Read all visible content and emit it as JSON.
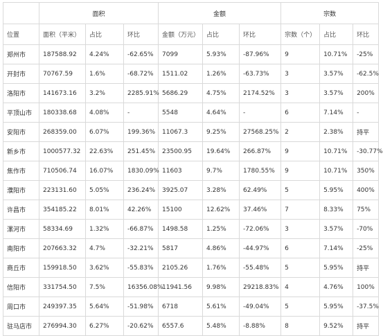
{
  "header": {
    "groups": [
      "面积",
      "金额",
      "宗数"
    ],
    "columns": [
      "位置",
      "面积（平米）",
      "占比",
      "环比",
      "金额（万元）",
      "占比",
      "环比",
      "宗数（个）",
      "占比",
      "环比"
    ]
  },
  "rows": [
    [
      "郑州市",
      "187588.92",
      "4.24%",
      "-62.65%",
      "7099",
      "5.93%",
      "-87.96%",
      "9",
      "10.71%",
      "-25%"
    ],
    [
      "开封市",
      "70767.59",
      "1.6%",
      "-68.72%",
      "1511.02",
      "1.26%",
      "-63.73%",
      "3",
      "3.57%",
      "-62.5%"
    ],
    [
      "洛阳市",
      "141673.16",
      "3.2%",
      "2285.91%",
      "5686.29",
      "4.75%",
      "2174.52%",
      "3",
      "3.57%",
      "200%"
    ],
    [
      "平顶山市",
      "180338.68",
      "4.08%",
      "-",
      "5548",
      "4.64%",
      "-",
      "6",
      "7.14%",
      "-"
    ],
    [
      "安阳市",
      "268359.00",
      "6.07%",
      "199.36%",
      "11067.3",
      "9.25%",
      "27568.25%",
      "2",
      "2.38%",
      "持平"
    ],
    [
      "新乡市",
      "1000577.32",
      "22.63%",
      "251.45%",
      "23500.95",
      "19.64%",
      "266.87%",
      "9",
      "10.71%",
      "-30.77%"
    ],
    [
      "焦作市",
      "710506.74",
      "16.07%",
      "1830.09%",
      "11603",
      "9.7%",
      "1780.55%",
      "9",
      "10.71%",
      "350%"
    ],
    [
      "濮阳市",
      "223131.60",
      "5.05%",
      "236.24%",
      "3925.07",
      "3.28%",
      "62.49%",
      "5",
      "5.95%",
      "400%"
    ],
    [
      "许昌市",
      "354185.22",
      "8.01%",
      "42.26%",
      "15100",
      "12.62%",
      "37.46%",
      "7",
      "8.33%",
      "75%"
    ],
    [
      "漯河市",
      "58334.69",
      "1.32%",
      "-66.87%",
      "1498.58",
      "1.25%",
      "-72.06%",
      "3",
      "3.57%",
      "-70%"
    ],
    [
      "南阳市",
      "207663.32",
      "4.7%",
      "-32.21%",
      "5817",
      "4.86%",
      "-44.97%",
      "6",
      "7.14%",
      "-25%"
    ],
    [
      "商丘市",
      "159918.50",
      "3.62%",
      "-55.83%",
      "2105.26",
      "1.76%",
      "-55.48%",
      "5",
      "5.95%",
      "持平"
    ],
    [
      "信阳市",
      "331754.50",
      "7.5%",
      "16356.08%",
      "11941.56",
      "9.98%",
      "29218.83%",
      "4",
      "4.76%",
      "100%"
    ],
    [
      "周口市",
      "249397.35",
      "5.64%",
      "-51.98%",
      "6718",
      "5.61%",
      "-49.04%",
      "5",
      "5.95%",
      "-37.5%"
    ],
    [
      "驻马店市",
      "276994.30",
      "6.27%",
      "-20.62%",
      "6557.6",
      "5.48%",
      "-8.88%",
      "8",
      "9.52%",
      "持平"
    ]
  ]
}
